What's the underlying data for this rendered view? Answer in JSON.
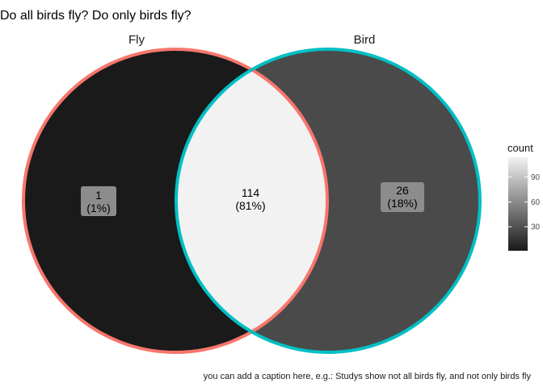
{
  "chart_data": {
    "type": "venn",
    "title": "Do all birds fly? Do only birds fly?",
    "caption": "you can add a caption here, e.g.: Studys show not all birds fly, and not only birds fly",
    "sets": [
      {
        "name": "Fly",
        "color": "#F8766D"
      },
      {
        "name": "Bird",
        "color": "#00BFC4"
      }
    ],
    "regions": [
      {
        "sets": [
          "Fly"
        ],
        "count": 1,
        "percent_label": "(1%)"
      },
      {
        "sets": [
          "Fly",
          "Bird"
        ],
        "count": 114,
        "percent_label": "(81%)"
      },
      {
        "sets": [
          "Bird"
        ],
        "count": 26,
        "percent_label": "(18%)"
      }
    ],
    "legend": {
      "title": "count",
      "ticks": [
        30,
        60,
        90
      ],
      "range": [
        1,
        114
      ],
      "low_color": "#1a1a1a",
      "high_color": "#f2f2f2",
      "placement": "right"
    }
  }
}
